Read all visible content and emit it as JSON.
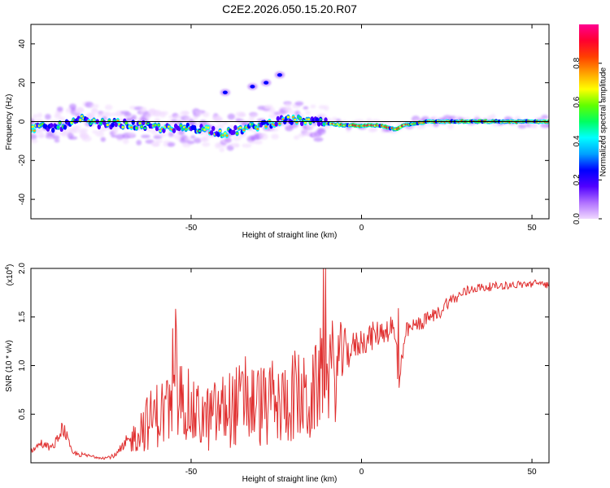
{
  "title": "C2E2.2026.050.15.20.R07",
  "chart_data": [
    {
      "type": "heatmap",
      "xlabel": "Height of straight line (km)",
      "ylabel": "Frequency (Hz)",
      "xlim": [
        -97,
        55
      ],
      "ylim": [
        -50,
        50
      ],
      "xticks": [
        -50,
        0,
        50
      ],
      "yticks": [
        -40,
        -20,
        0,
        20,
        40
      ],
      "colorbar": {
        "label": "Normalized spectral amplitude",
        "range": [
          0,
          1
        ],
        "ticks": [
          "0.0",
          "0.2",
          "0.4",
          "0.6",
          "0.8"
        ],
        "colors": [
          "#f0d8ff",
          "#b070ff",
          "#5000ff",
          "#0000ff",
          "#00a0ff",
          "#00ffff",
          "#00ff60",
          "#60ff00",
          "#ffff00",
          "#ffa000",
          "#ff4000",
          "#ff0030",
          "#ff0090"
        ]
      },
      "ridge": {
        "x": [
          -97,
          -90,
          -85,
          -82,
          -78,
          -72,
          -66,
          -60,
          -55,
          -50,
          -45,
          -40,
          -35,
          -30,
          -25,
          -20,
          -15,
          -10,
          -5,
          0,
          5,
          8,
          10,
          12,
          15,
          20,
          25,
          30,
          40,
          55
        ],
        "freq": [
          -3,
          -3,
          -1,
          1,
          -1,
          -1,
          -2,
          -3,
          -4,
          -3,
          -4,
          -6,
          -4,
          -2,
          0,
          1,
          0,
          -1,
          -2,
          -2,
          -2,
          -3,
          -4,
          -2,
          -1,
          0,
          0,
          0,
          0,
          0
        ]
      },
      "spurs": [
        {
          "x": -40,
          "freq": 15
        },
        {
          "x": -32,
          "freq": 18
        },
        {
          "x": -28,
          "freq": 20
        },
        {
          "x": -24,
          "freq": 24
        }
      ]
    },
    {
      "type": "line",
      "xlabel": "Height of straight line (km)",
      "ylabel": "SNR (10 * v/v)",
      "scale_label": "(x10",
      "scale_exp": "4",
      "scale_close": ")",
      "xlim": [
        -97,
        55
      ],
      "ylim": [
        0,
        20000
      ],
      "xticks": [
        -50,
        0,
        50
      ],
      "yticks": [
        5000,
        10000,
        15000,
        20000
      ],
      "ytick_labels": [
        "0.5",
        "1.0",
        "1.5",
        "2.0"
      ],
      "color": "#e03030",
      "series": [
        {
          "name": "SNR",
          "x": [
            -97,
            -94,
            -91,
            -89,
            -88,
            -87,
            -85,
            -80,
            -75,
            -72,
            -70,
            -67,
            -65,
            -60,
            -55,
            -52,
            -50,
            -45,
            -40,
            -35,
            -30,
            -25,
            -20,
            -15,
            -12,
            -10,
            -8,
            -6,
            -4,
            -2,
            0,
            3,
            6,
            9,
            10,
            11,
            12,
            13,
            15,
            18,
            20,
            23,
            25,
            28,
            30,
            33,
            35,
            40,
            45,
            50,
            52,
            55
          ],
          "y": [
            1200,
            2000,
            1500,
            2400,
            3600,
            3200,
            1000,
            700,
            500,
            800,
            1500,
            2500,
            3500,
            5000,
            5500,
            7000,
            5000,
            4500,
            5500,
            6000,
            6000,
            5500,
            7000,
            6000,
            9000,
            10000,
            9000,
            11000,
            11500,
            12000,
            12500,
            13000,
            13500,
            14000,
            12000,
            9000,
            10000,
            13500,
            14000,
            14500,
            15000,
            15500,
            16500,
            17000,
            17500,
            18000,
            18000,
            18200,
            18300,
            18400,
            18500,
            18300
          ],
          "amp": [
            200,
            500,
            300,
            700,
            700,
            800,
            300,
            200,
            150,
            300,
            800,
            1500,
            2500,
            3500,
            4000,
            4500,
            3500,
            3500,
            4000,
            4500,
            4500,
            4000,
            5000,
            4500,
            5000,
            6000,
            5500,
            3500,
            2000,
            1500,
            1500,
            1500,
            1300,
            1500,
            2500,
            3500,
            1200,
            900,
            800,
            800,
            700,
            700,
            700,
            600,
            600,
            500,
            500,
            400,
            400,
            400,
            400,
            400
          ]
        }
      ]
    }
  ]
}
